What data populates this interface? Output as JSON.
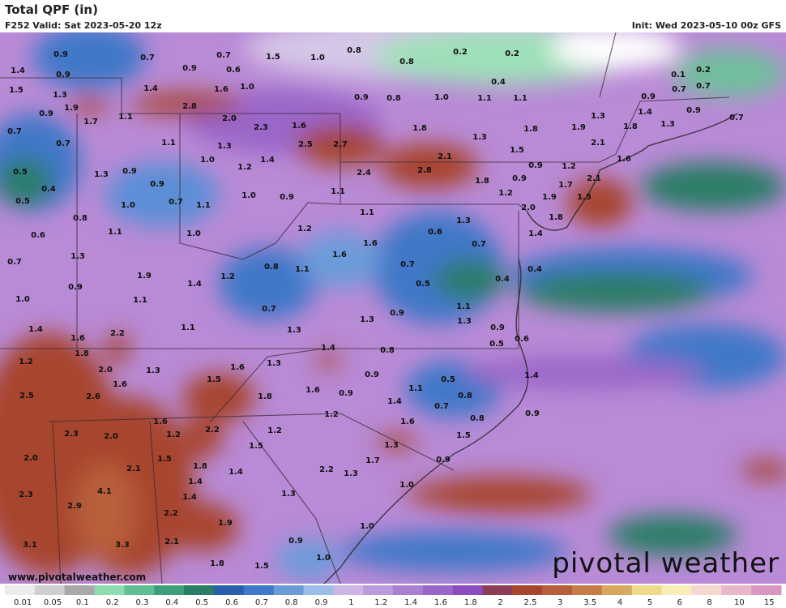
{
  "header": {
    "title": "Total QPF (in)",
    "valid": "F252 Valid: Sat 2023-05-20 12z",
    "init": "Init: Wed 2023-05-10 00z GFS"
  },
  "footer": {
    "url": "www.pivotalweather.com",
    "logo": "pivotal weather"
  },
  "map_labels": [
    "0.9",
    "0.7",
    "0.7",
    "1.5",
    "1.0",
    "0.8",
    "0.2",
    "0.2",
    "0.8",
    "0.2",
    "0.9",
    "0.6",
    "0.1",
    "1.4",
    "0.9",
    "0.4",
    "1.5",
    "1.4",
    "1.6",
    "1.0",
    "0.7",
    "0.7",
    "1.3",
    "0.9",
    "0.8",
    "1.0",
    "1.1",
    "1.1",
    "0.9",
    "1.9",
    "2.8",
    "0.9",
    "1.1",
    "2.0",
    "2.3",
    "1.6",
    "1.3",
    "1.4",
    "0.9",
    "1.7",
    "1.8",
    "1.8",
    "1.9",
    "1.8",
    "1.3",
    "0.7",
    "0.7",
    "1.3",
    "1.1",
    "1.3",
    "2.5",
    "2.7",
    "2.1",
    "0.7",
    "1.5",
    "1.6",
    "2.1",
    "1.0",
    "1.4",
    "0.5",
    "1.3",
    "0.9",
    "1.2",
    "2.4",
    "2.8",
    "0.9",
    "1.2",
    "1.8",
    "0.9",
    "2.1",
    "0.4",
    "0.9",
    "1.7",
    "1.1",
    "1.2",
    "1.9",
    "1.5",
    "0.5",
    "1.0",
    "0.7",
    "1.1",
    "1.0",
    "0.9",
    "1.1",
    "2.0",
    "0.8",
    "1.3",
    "1.8",
    "1.2",
    "1.1",
    "1.0",
    "0.6",
    "0.6",
    "1.4",
    "1.6",
    "0.7",
    "1.3",
    "1.6",
    "0.7",
    "0.7",
    "0.4",
    "0.8",
    "1.1",
    "1.9",
    "1.2",
    "0.4",
    "0.9",
    "1.4",
    "0.5",
    "1.0",
    "1.1",
    "0.7",
    "1.1",
    "0.9",
    "1.3",
    "1.3",
    "1.4",
    "1.1",
    "1.3",
    "0.9",
    "2.2",
    "1.6",
    "0.5",
    "0.6",
    "1.4",
    "0.8",
    "1.8",
    "1.2",
    "1.3",
    "2.0",
    "1.6",
    "1.3",
    "0.9",
    "1.4",
    "0.5",
    "1.5",
    "1.6",
    "1.6",
    "0.9",
    "1.1",
    "2.5",
    "2.6",
    "1.8",
    "0.8",
    "1.4",
    "0.7",
    "1.2",
    "0.9",
    "1.6",
    "0.8",
    "1.6",
    "2.2",
    "1.2",
    "1.2",
    "2.3",
    "2.0",
    "1.5",
    "1.5",
    "1.3",
    "2.0",
    "1.5",
    "1.7",
    "0.9",
    "1.8",
    "2.1",
    "1.4",
    "2.2",
    "1.3",
    "1.4",
    "1.0",
    "4.1",
    "2.3",
    "1.3",
    "1.4",
    "2.9",
    "2.2",
    "1.9",
    "1.0",
    "0.9",
    "2.1",
    "3.1",
    "3.3",
    "1.8",
    "1.5",
    "1.0"
  ],
  "colorbar": {
    "labels": [
      "0.01",
      "0.05",
      "0.1",
      "0.2",
      "0.3",
      "0.4",
      "0.5",
      "0.6",
      "0.7",
      "0.8",
      "0.9",
      "1",
      "1.2",
      "1.4",
      "1.6",
      "1.8",
      "2",
      "2.5",
      "3",
      "3.5",
      "4",
      "5",
      "6",
      "8",
      "10",
      "15"
    ],
    "colors": [
      "#ececec",
      "#cfcfcf",
      "#a9a9a9",
      "#8fdcb0",
      "#5fbf92",
      "#3e9e7a",
      "#2a7d66",
      "#2a5fae",
      "#3f78c8",
      "#6c9bda",
      "#9cbde8",
      "#cdb6e4",
      "#bb9bdc",
      "#aa80d2",
      "#9a66c9",
      "#8c4bbe",
      "#8e3d58",
      "#a7452f",
      "#b85e3b",
      "#c77d4a",
      "#d9a85e",
      "#efda8c",
      "#f8efb8",
      "#f6d7cf",
      "#e9b6c9",
      "#d896c0"
    ]
  }
}
